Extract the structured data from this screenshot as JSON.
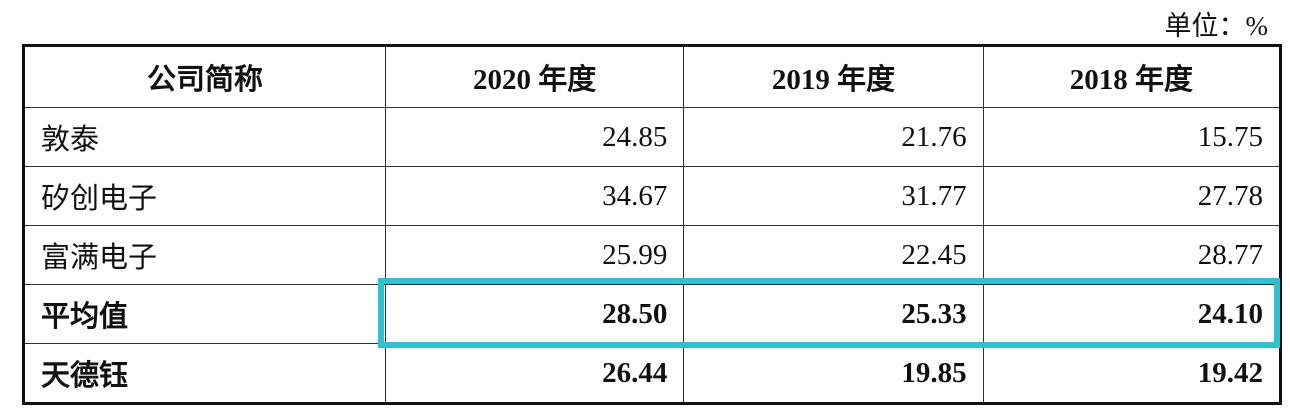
{
  "unit": "单位：%",
  "table": {
    "header": [
      "公司简称",
      "2020 年度",
      "2019 年度",
      "2018 年度"
    ],
    "rows": [
      [
        "敦泰",
        "24.85",
        "21.76",
        "15.75"
      ],
      [
        "矽创电子",
        "34.67",
        "31.77",
        "27.78"
      ],
      [
        "富满电子",
        "25.99",
        "22.45",
        "28.77"
      ],
      [
        "平均值",
        "28.50",
        "25.33",
        "24.10"
      ],
      [
        "天德钰",
        "26.44",
        "19.85",
        "19.42"
      ]
    ]
  }
}
